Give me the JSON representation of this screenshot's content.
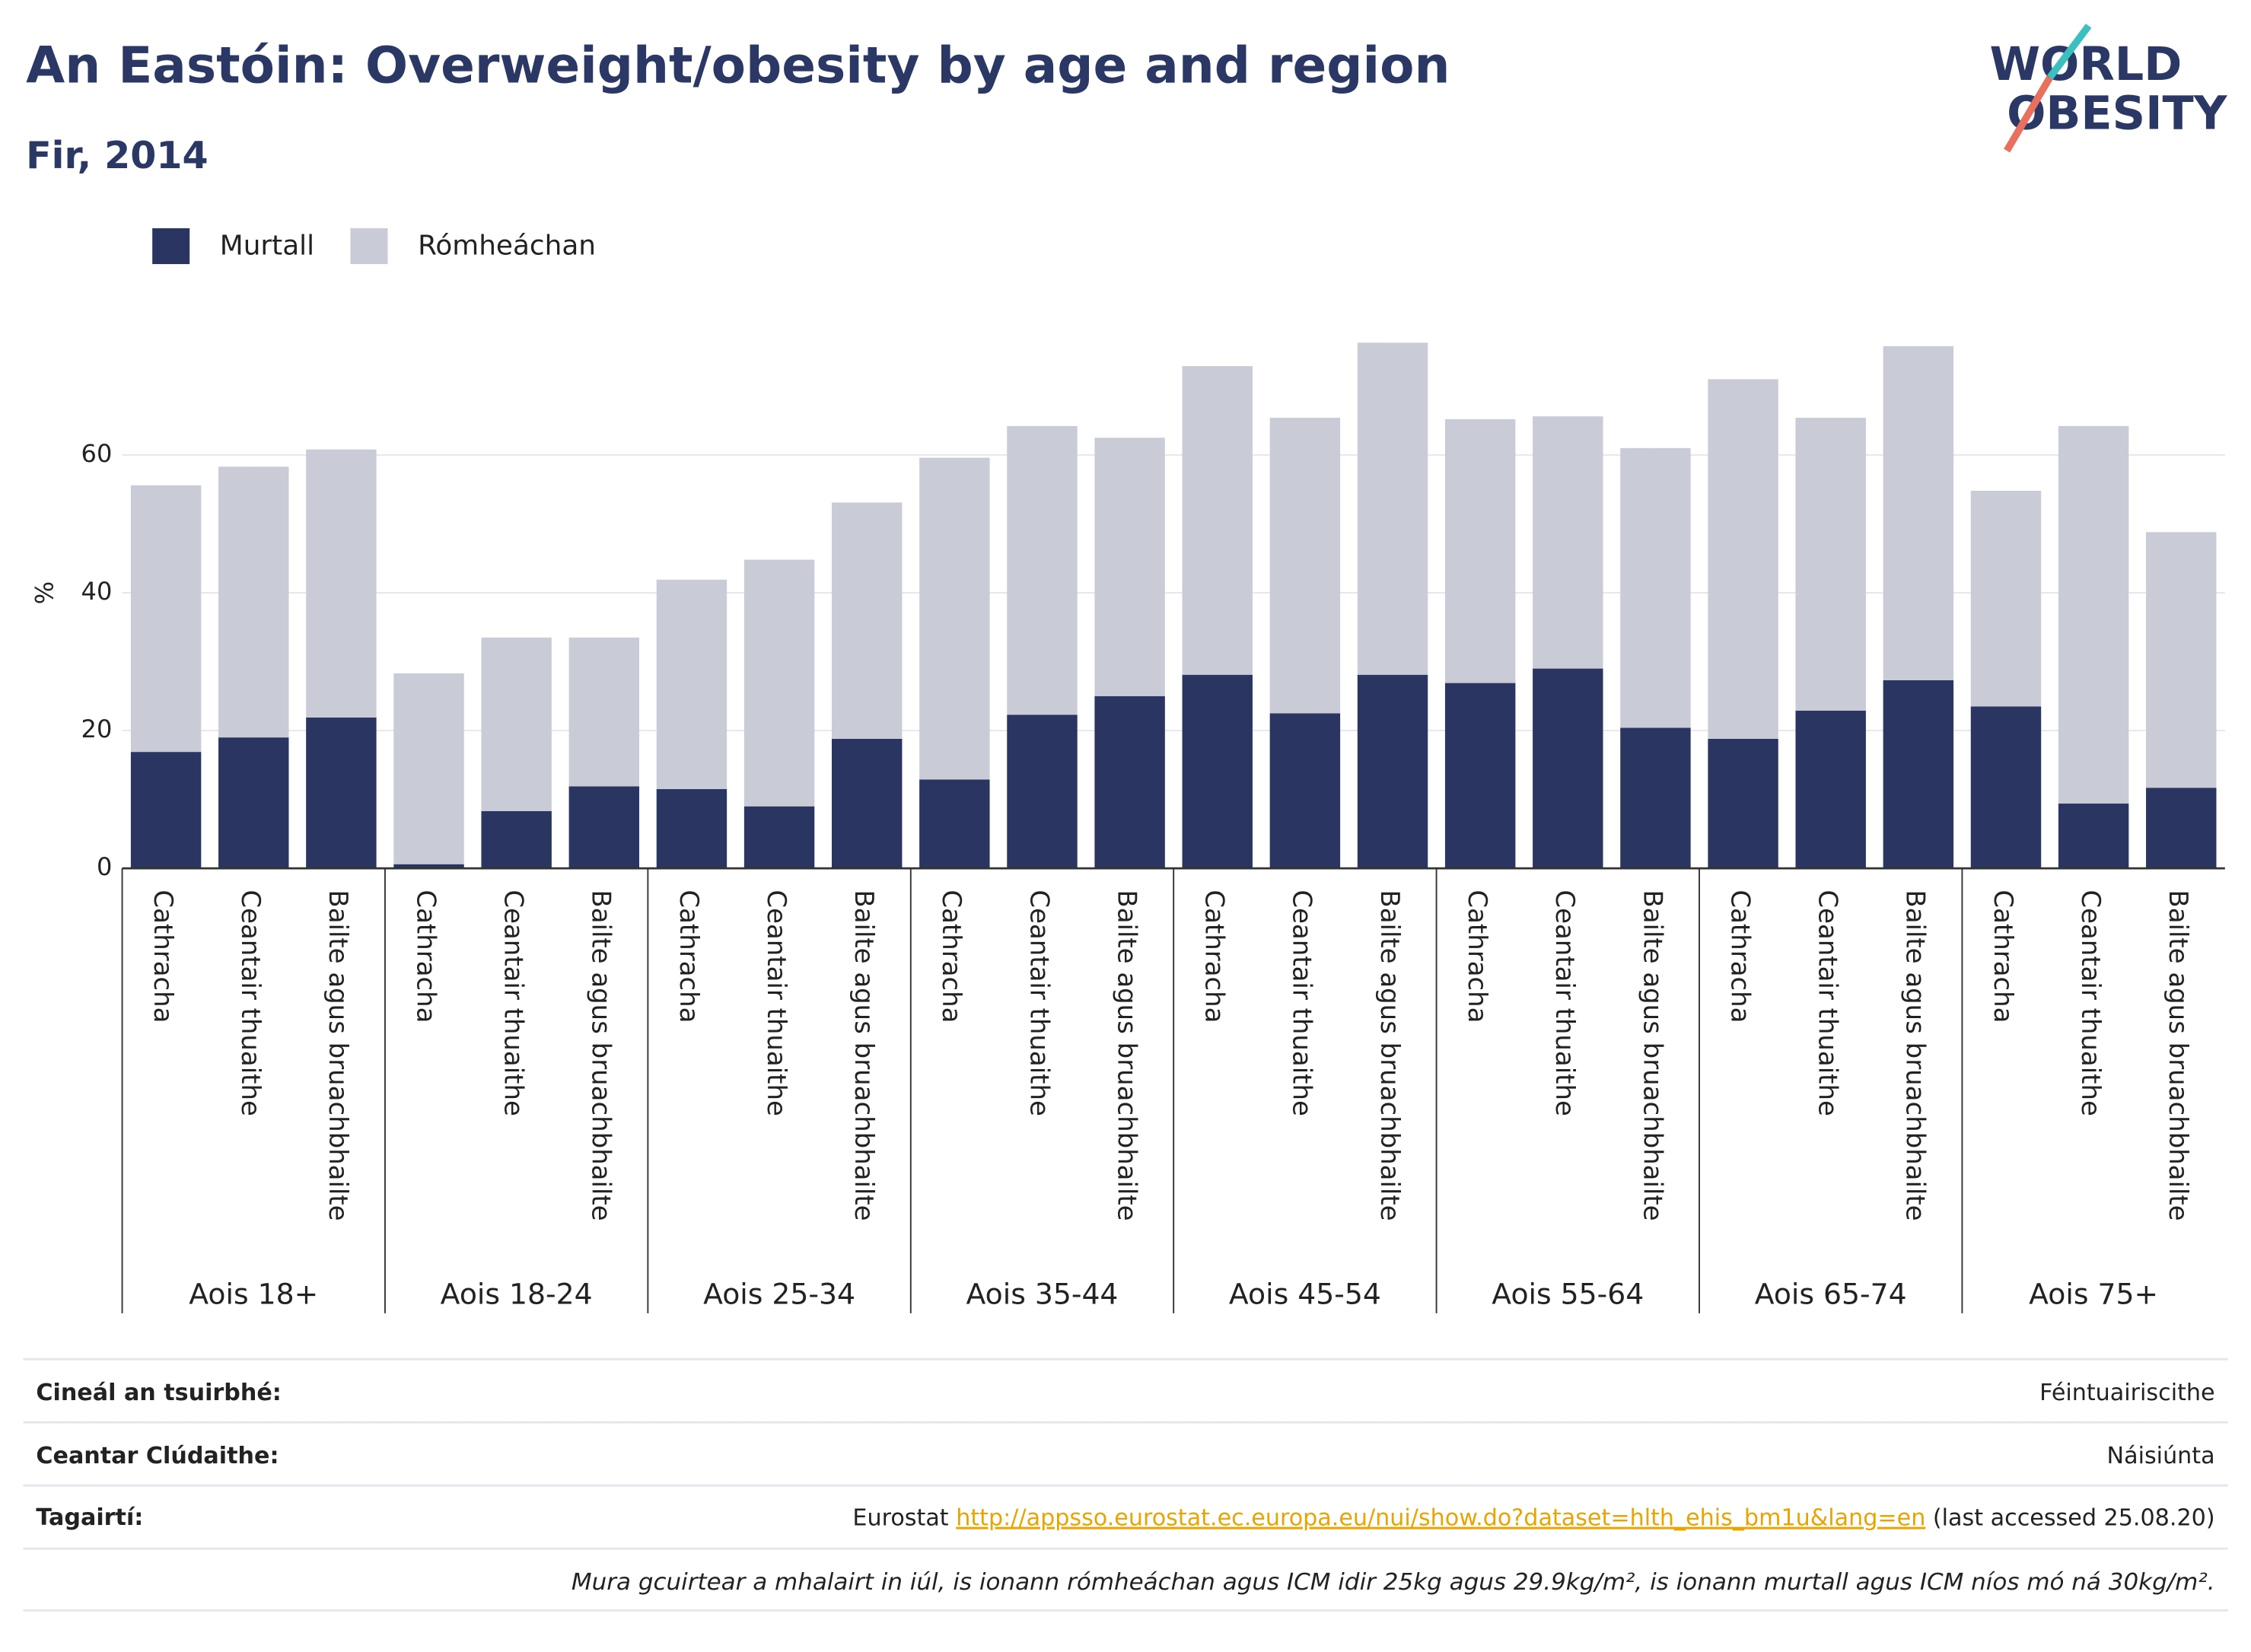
{
  "chart_data": {
    "type": "stacked_bar",
    "title": "An Eastóin: Overweight/obesity by age and region",
    "subtitle": "Fir, 2014",
    "y_label": "%",
    "categories": [
      "Cathracha",
      "Ceantair thuaithe",
      "Bailte agus bruachbhailte",
      "Cathracha",
      "Ceantair thuaithe",
      "Bailte agus bruachbhailte",
      "Cathracha",
      "Ceantair thuaithe",
      "Bailte agus bruachbhailte",
      "Cathracha",
      "Ceantair thuaithe",
      "Bailte agus bruachbhailte",
      "Cathracha",
      "Ceantair thuaithe",
      "Bailte agus bruachbhailte",
      "Cathracha",
      "Ceantair thuaithe",
      "Bailte agus bruachbhailte",
      "Cathracha",
      "Ceantair thuaithe",
      "Bailte agus bruachbhailte",
      "Cathracha",
      "Ceantair thuaithe",
      "Bailte agus bruachbhailte"
    ],
    "groups": [
      "Aois 18+",
      "Aois 18-24",
      "Aois 25-34",
      "Aois 35-44",
      "Aois 45-54",
      "Aois 55-64",
      "Aois 65-74",
      "Aois 75+"
    ],
    "series": [
      {
        "name": "Murtall",
        "color": "#2a3561",
        "values": [
          16.9,
          19.0,
          21.9,
          0.6,
          8.3,
          11.9,
          11.5,
          9.0,
          18.8,
          12.9,
          22.3,
          25.0,
          28.1,
          22.5,
          28.1,
          26.9,
          29.0,
          20.4,
          18.8,
          22.9,
          27.3,
          23.5,
          9.4,
          11.7
        ]
      },
      {
        "name": "Rómheáchan",
        "color": "#c9cbd7",
        "values": [
          38.7,
          39.3,
          38.9,
          27.7,
          25.2,
          21.6,
          30.4,
          35.8,
          34.3,
          46.7,
          41.9,
          37.5,
          44.8,
          42.9,
          48.2,
          38.3,
          36.6,
          40.6,
          52.2,
          42.5,
          48.5,
          31.3,
          54.8,
          37.1
        ]
      }
    ],
    "ylim": [
      0,
      79
    ],
    "yticks": [
      0,
      20,
      40,
      60
    ],
    "grid": true,
    "legend": "top-left"
  },
  "logo": {
    "line1": "WORLD",
    "line2": "OBESITY"
  },
  "footer": {
    "rows": [
      {
        "label": "Cineál an tsuirbhé:",
        "value": "Féintuairiscithe"
      },
      {
        "label": "Ceantar Clúdaithe:",
        "value": "Náisiúnta"
      }
    ],
    "reference": {
      "label": "Tagairtí:",
      "source": "Eurostat",
      "url": "http://appsso.eurostat.ec.europa.eu/nui/show.do?dataset=hlth_ehis_bm1u&lang=en",
      "accessed": "(last accessed 25.08.20)"
    },
    "note": "Mura gcuirtear a mhalairt in iúl, is ionann rómheáchan agus ICM idir 25kg agus 29.9kg/m², is ionann murtall agus ICM níos mó ná 30kg/m²."
  }
}
